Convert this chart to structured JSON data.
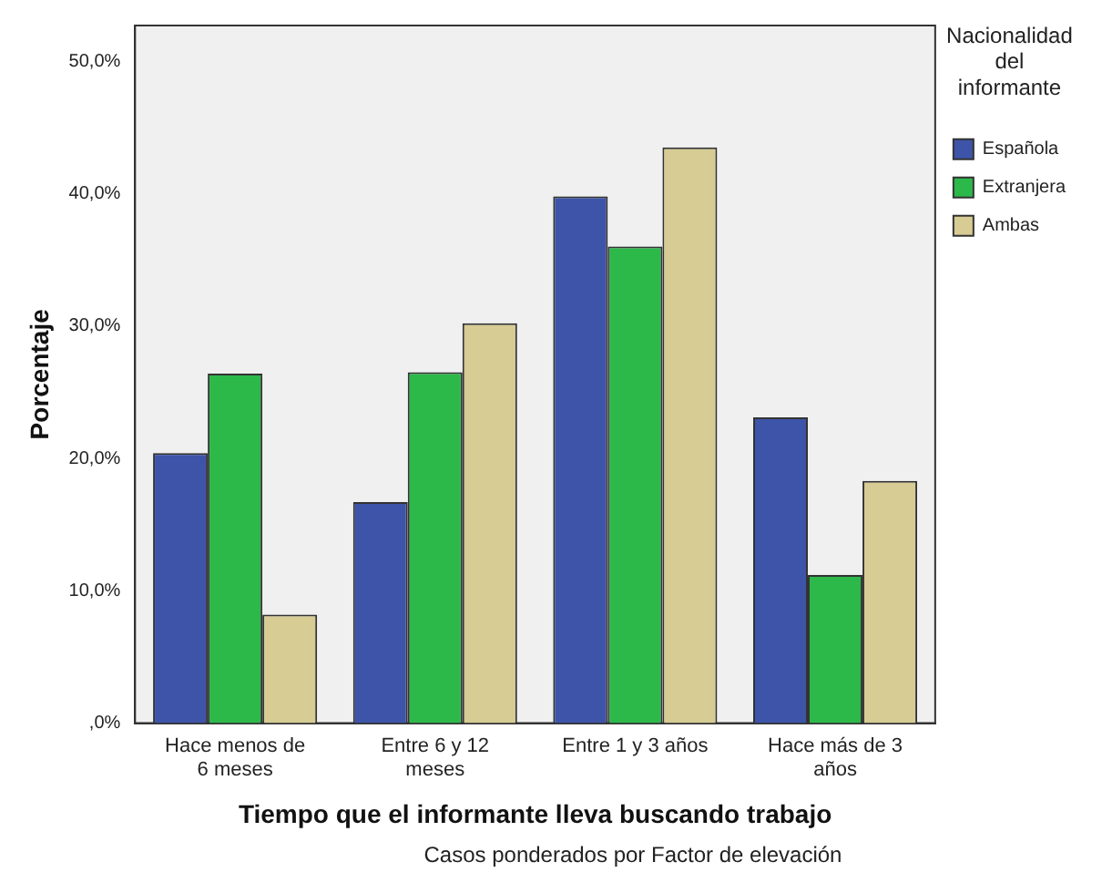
{
  "chart_data": {
    "type": "bar",
    "xlabel": "Tiempo que el informante lleva buscando trabajo",
    "ylabel": "Porcentaje",
    "legend_title": "Nacionalidad del informante",
    "legend": "top right",
    "categories": [
      "Hace menos de 6 meses",
      "Entre 6 y 12 meses",
      "Entre 1 y 3 años",
      "Hace más de 3 años"
    ],
    "series": [
      {
        "name": "Española",
        "color": "#3d54a8",
        "values": [
          20.4,
          16.7,
          39.8,
          23.1
        ]
      },
      {
        "name": "Extranjera",
        "color": "#2db84a",
        "values": [
          26.4,
          26.5,
          36.0,
          11.2
        ]
      },
      {
        "name": "Ambas",
        "color": "#d6cc94",
        "values": [
          8.2,
          30.2,
          43.5,
          18.3
        ]
      }
    ],
    "ylim": [
      0,
      52.7
    ],
    "yticks": [
      {
        "value": 0,
        "label": ",0%"
      },
      {
        "value": 10,
        "label": "10,0%"
      },
      {
        "value": 20,
        "label": "20,0%"
      },
      {
        "value": 30,
        "label": "30,0%"
      },
      {
        "value": 40,
        "label": "40,0%"
      },
      {
        "value": 50,
        "label": "50,0%"
      }
    ],
    "grid": false,
    "annotations": [
      "Casos ponderados por Factor de elevación"
    ]
  }
}
